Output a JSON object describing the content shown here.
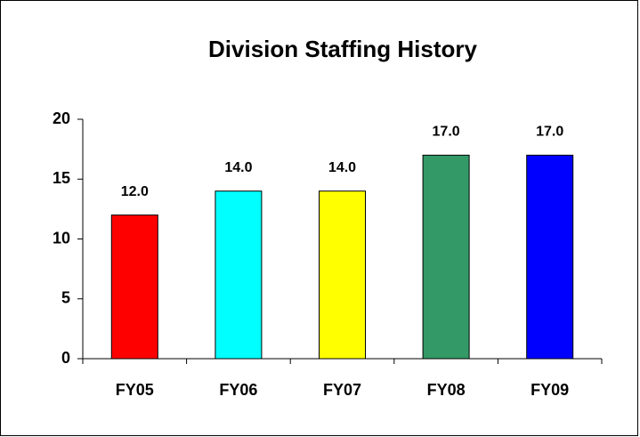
{
  "chart_data": {
    "type": "bar",
    "title": "Division Staffing History",
    "categories": [
      "FY05",
      "FY06",
      "FY07",
      "FY08",
      "FY09"
    ],
    "values": [
      12,
      14,
      14,
      17,
      17
    ],
    "value_labels": [
      "12.0",
      "14.0",
      "14.0",
      "17.0",
      "17.0"
    ],
    "colors": [
      "#ff0000",
      "#00ffff",
      "#ffff00",
      "#339966",
      "#0000ff"
    ],
    "ylim": [
      0,
      20
    ],
    "yticks": [
      0,
      5,
      10,
      15,
      20
    ],
    "grid": false
  }
}
